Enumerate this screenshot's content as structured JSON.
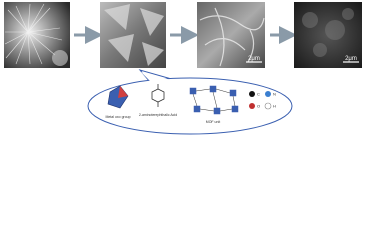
{
  "figure": {
    "scale_bars": [
      "2μm",
      "2μm"
    ],
    "callout": {
      "labels": [
        "Metal oxo group",
        "2-aminoterephthalic Acid",
        "MOF unit"
      ],
      "legend": [
        "C",
        "N",
        "O",
        "H"
      ]
    }
  }
}
